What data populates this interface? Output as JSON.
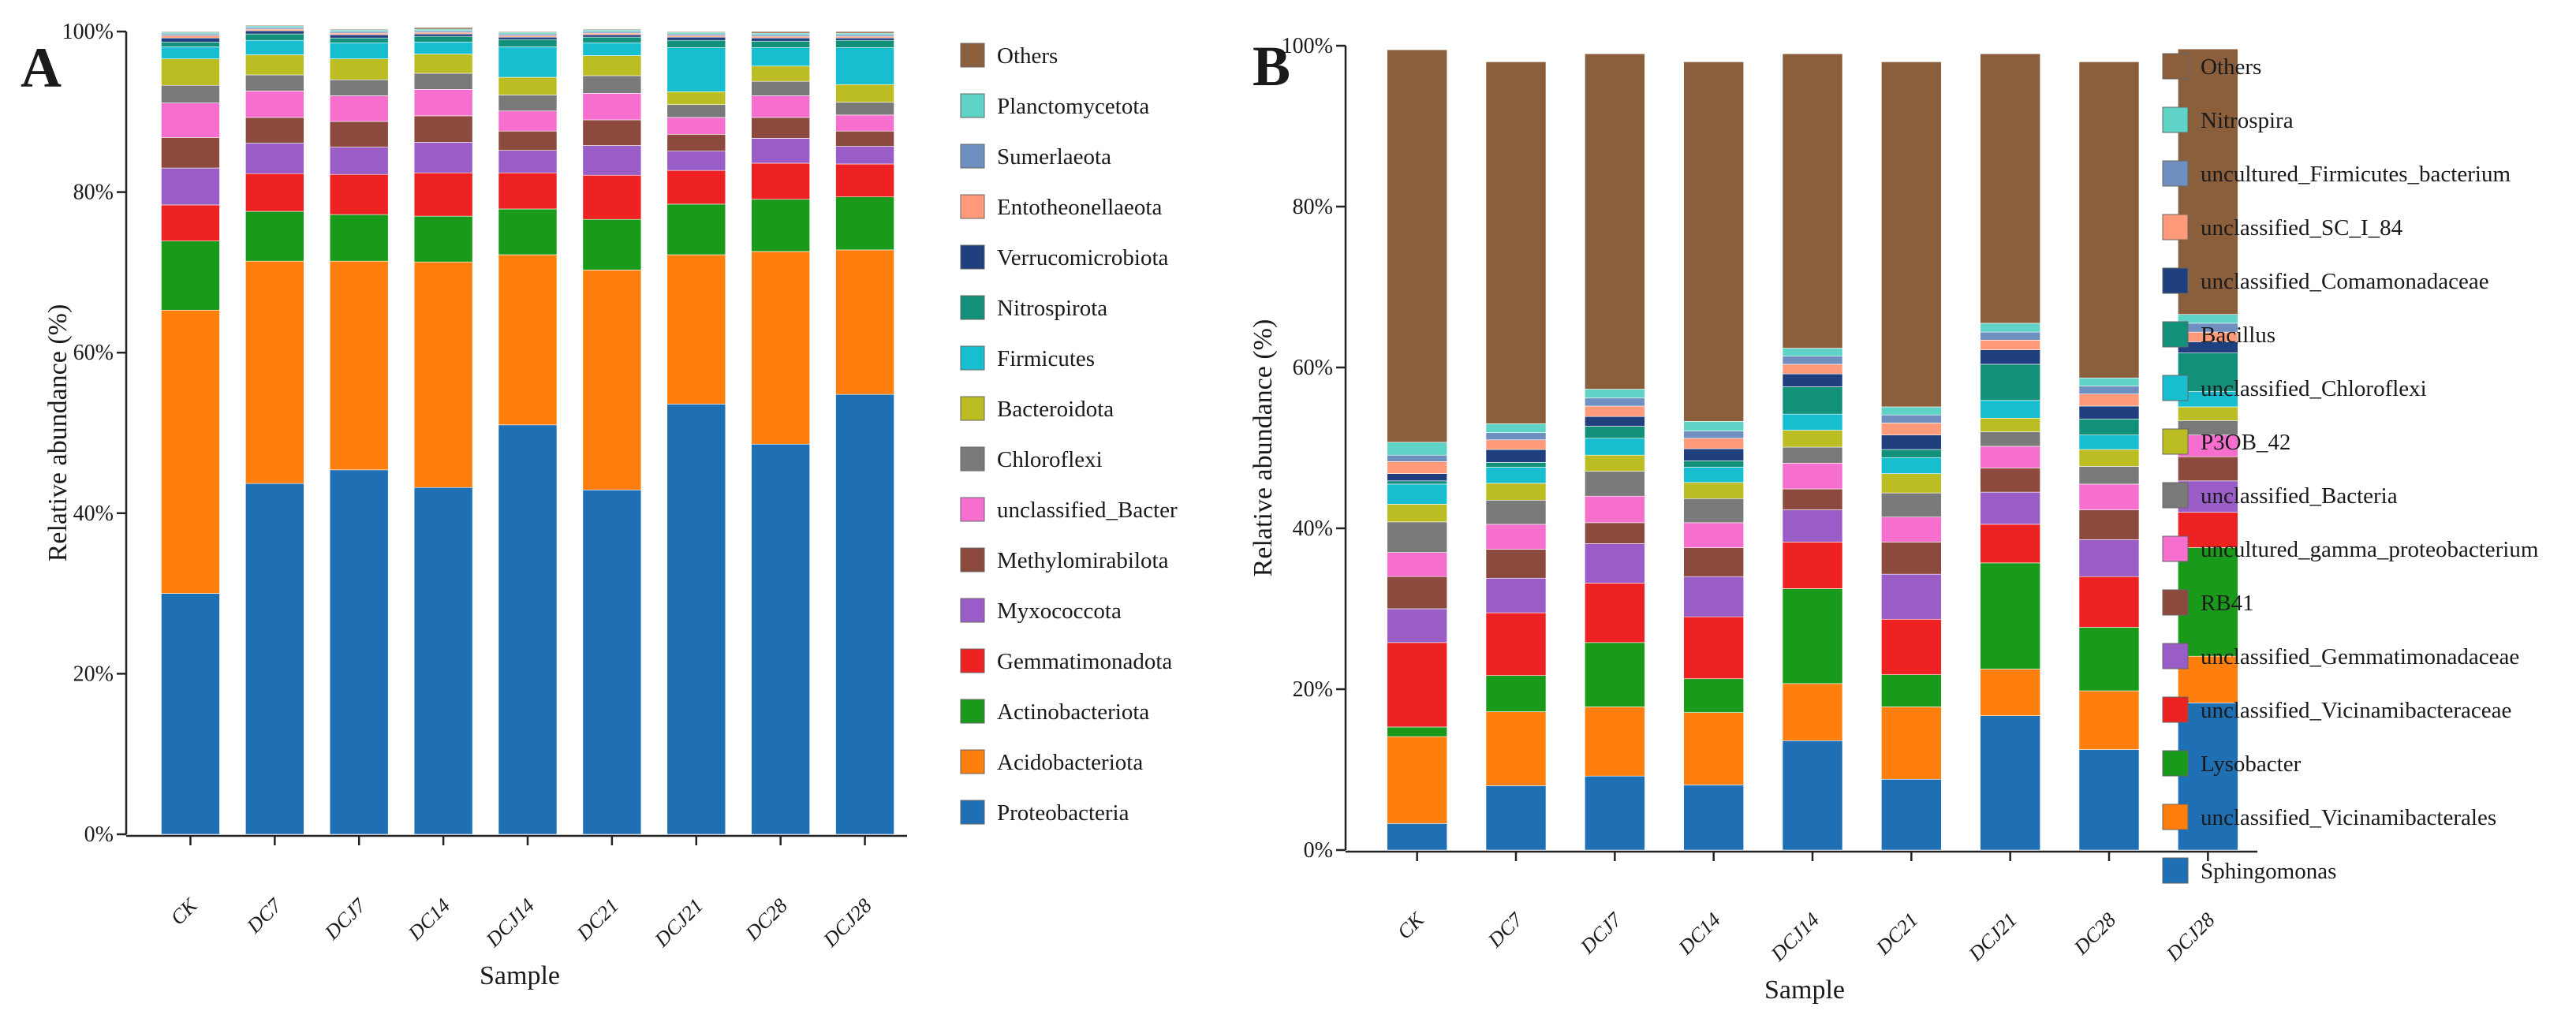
{
  "chart_data": [
    {
      "type": "bar",
      "stacked": true,
      "panel": "A",
      "xlabel": "Sample",
      "ylabel": "Relative abundance (%)",
      "ylim": [
        0,
        100
      ],
      "y_ticks": [
        "0%",
        "20%",
        "40%",
        "60%",
        "80%",
        "100%"
      ],
      "categories": [
        "CK",
        "DC7",
        "DCJ7",
        "DC14",
        "DCJ14",
        "DC21",
        "DCJ21",
        "DC28",
        "DCJ28"
      ],
      "legend_position": "right",
      "series": [
        {
          "name": "Proteobacteria",
          "color": "#1f6fb4",
          "values": [
            30.0,
            43.7,
            45.4,
            43.2,
            51.0,
            42.9,
            53.6,
            48.6,
            54.8
          ]
        },
        {
          "name": "Acidobacteriota",
          "color": "#ff7f0e",
          "values": [
            35.3,
            27.7,
            26.0,
            28.1,
            21.2,
            27.4,
            18.6,
            24.0,
            18.0
          ]
        },
        {
          "name": "Actinobacteriota",
          "color": "#1a9a1a",
          "values": [
            8.6,
            6.2,
            5.8,
            5.7,
            5.7,
            6.3,
            6.3,
            6.5,
            6.6
          ]
        },
        {
          "name": "Gemmatimonadota",
          "color": "#ee2222",
          "values": [
            4.5,
            4.7,
            5.0,
            5.4,
            4.5,
            5.5,
            4.2,
            4.5,
            4.1
          ]
        },
        {
          "name": "Myxococcota",
          "color": "#9a5cc6",
          "values": [
            4.6,
            3.8,
            3.4,
            3.8,
            2.8,
            3.7,
            2.4,
            3.1,
            2.2
          ]
        },
        {
          "name": "Methylomirabilota",
          "color": "#8c4a3e",
          "values": [
            3.8,
            3.2,
            3.2,
            3.3,
            2.4,
            3.2,
            2.1,
            2.6,
            1.9
          ]
        },
        {
          "name": "unclassified_Bacter",
          "color": "#f66fcf",
          "values": [
            4.3,
            3.3,
            3.2,
            3.3,
            2.5,
            3.3,
            2.1,
            2.7,
            2.0
          ]
        },
        {
          "name": "Chloroflexi",
          "color": "#7a7a7a",
          "values": [
            2.2,
            2.0,
            2.0,
            2.0,
            2.0,
            2.2,
            1.6,
            1.8,
            1.6
          ]
        },
        {
          "name": "Bacteroidota",
          "color": "#bcbd22",
          "values": [
            3.3,
            2.5,
            2.6,
            2.4,
            2.2,
            2.5,
            1.6,
            1.9,
            2.2
          ]
        },
        {
          "name": "Firmicutes",
          "color": "#17becf",
          "values": [
            1.5,
            1.8,
            2.0,
            1.5,
            3.8,
            1.6,
            5.5,
            2.3,
            4.6
          ]
        },
        {
          "name": "Nitrospirota",
          "color": "#12907a",
          "values": [
            0.6,
            0.8,
            0.6,
            0.7,
            0.9,
            0.7,
            0.9,
            0.8,
            0.9
          ]
        },
        {
          "name": "Verrucomicrobiota",
          "color": "#1f3f7f",
          "values": [
            0.5,
            0.4,
            0.4,
            0.3,
            0.3,
            0.3,
            0.4,
            0.4,
            0.3
          ]
        },
        {
          "name": "Entotheonellaeota",
          "color": "#ff9a7a",
          "values": [
            0.3,
            0.2,
            0.2,
            0.2,
            0.2,
            0.2,
            0.2,
            0.2,
            0.2
          ]
        },
        {
          "name": "Sumerlaeota",
          "color": "#6f8fc0",
          "values": [
            0.2,
            0.2,
            0.2,
            0.2,
            0.2,
            0.2,
            0.2,
            0.2,
            0.2
          ]
        },
        {
          "name": "Planctomycetota",
          "color": "#5fd3c6",
          "values": [
            0.2,
            0.2,
            0.2,
            0.2,
            0.2,
            0.2,
            0.2,
            0.2,
            0.2
          ]
        },
        {
          "name": "Others",
          "color": "#8b5e3c",
          "values": [
            0.1,
            0.1,
            0.1,
            0.2,
            0.1,
            0.1,
            0.1,
            0.2,
            0.2
          ]
        }
      ]
    },
    {
      "type": "bar",
      "stacked": true,
      "panel": "B",
      "xlabel": "Sample",
      "ylabel": "Relative abundance (%)",
      "ylim": [
        0,
        100
      ],
      "y_ticks": [
        "0%",
        "20%",
        "40%",
        "60%",
        "80%",
        "100%"
      ],
      "categories": [
        "CK",
        "DC7",
        "DCJ7",
        "DC14",
        "DCJ14",
        "DC21",
        "DCJ21",
        "DC28",
        "DCJ28"
      ],
      "legend_position": "right",
      "series": [
        {
          "name": "Sphingomonas",
          "color": "#1f6fb4",
          "values": [
            3.3,
            8.0,
            9.2,
            8.1,
            13.6,
            8.8,
            16.7,
            12.5,
            18.3
          ]
        },
        {
          "name": "unclassified_Vicinamibacterales",
          "color": "#ff7f0e",
          "values": [
            10.8,
            9.2,
            8.6,
            9.0,
            7.1,
            9.0,
            5.8,
            7.3,
            5.8
          ]
        },
        {
          "name": "Lysobacter",
          "color": "#1a9a1a",
          "values": [
            1.2,
            4.5,
            8.0,
            4.2,
            11.8,
            4.0,
            13.2,
            7.9,
            13.5
          ]
        },
        {
          "name": "unclassified_Vicinamibacteraceae",
          "color": "#ee2222",
          "values": [
            10.5,
            7.8,
            7.4,
            7.7,
            5.8,
            6.9,
            4.8,
            6.3,
            4.4
          ]
        },
        {
          "name": "unclassified_Gemmatimonadaceae",
          "color": "#9a5cc6",
          "values": [
            4.2,
            4.3,
            4.9,
            5.0,
            4.0,
            5.6,
            4.0,
            4.6,
            3.9
          ]
        },
        {
          "name": "RB41",
          "color": "#8c4a3e",
          "values": [
            4.0,
            3.6,
            2.6,
            3.6,
            2.6,
            4.0,
            3.0,
            3.7,
            3.0
          ]
        },
        {
          "name": "uncultured_gamma_proteobacterium",
          "color": "#f66fcf",
          "values": [
            3.0,
            3.1,
            3.3,
            3.1,
            3.2,
            3.1,
            2.7,
            3.2,
            2.7
          ]
        },
        {
          "name": "unclassified_Bacteria",
          "color": "#7a7a7a",
          "values": [
            3.8,
            3.0,
            3.1,
            3.0,
            2.0,
            3.0,
            1.8,
            2.2,
            1.8
          ]
        },
        {
          "name": "P3OB_42",
          "color": "#bcbd22",
          "values": [
            2.2,
            2.1,
            2.0,
            2.0,
            2.1,
            2.4,
            1.7,
            2.1,
            1.7
          ]
        },
        {
          "name": "unclassified_Chloroflexi",
          "color": "#17becf",
          "values": [
            2.5,
            2.0,
            2.1,
            1.9,
            2.0,
            2.0,
            2.2,
            1.8,
            1.9
          ]
        },
        {
          "name": "Bacillus",
          "color": "#12907a",
          "values": [
            0.4,
            0.6,
            1.5,
            0.8,
            3.4,
            1.0,
            4.5,
            2.0,
            4.8
          ]
        },
        {
          "name": "unclassified_Comamonadaceae",
          "color": "#1f3f7f",
          "values": [
            0.9,
            1.6,
            1.2,
            1.5,
            1.6,
            1.8,
            1.8,
            1.6,
            1.4
          ]
        },
        {
          "name": "unclassified_SC_I_84",
          "color": "#ff9a7a",
          "values": [
            1.5,
            1.2,
            1.3,
            1.3,
            1.2,
            1.5,
            1.2,
            1.5,
            1.2
          ]
        },
        {
          "name": "uncultured_Firmicutes_bacterium",
          "color": "#6f8fc0",
          "values": [
            0.8,
            0.9,
            1.0,
            0.9,
            1.0,
            1.0,
            1.0,
            1.0,
            1.1
          ]
        },
        {
          "name": "Nitrospira",
          "color": "#5fd3c6",
          "values": [
            1.6,
            1.1,
            1.1,
            1.2,
            1.0,
            1.0,
            1.1,
            1.0,
            1.1
          ]
        },
        {
          "name": "Others",
          "color": "#8b5e3c",
          "values": [
            48.8,
            45.0,
            41.7,
            44.7,
            36.6,
            42.9,
            33.5,
            39.3,
            33.0
          ]
        }
      ]
    }
  ]
}
